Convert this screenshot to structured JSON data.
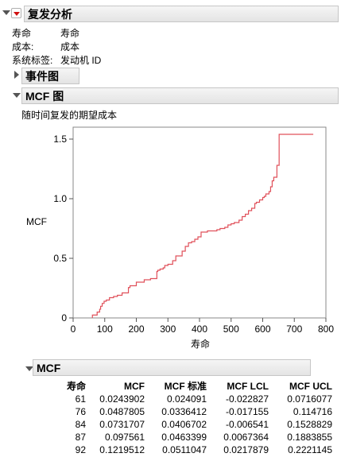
{
  "report": {
    "title": "复发分析",
    "fields": [
      {
        "label": "寿命",
        "value": "寿命"
      },
      {
        "label": "成本:",
        "value": "成本"
      },
      {
        "label": "系统标签:",
        "value": "发动机 ID"
      }
    ]
  },
  "event_plot": {
    "title": "事件图"
  },
  "mcf_plot": {
    "title": "MCF 图",
    "subtitle": "随时间复发的期望成本",
    "line_color": "#e0505a"
  },
  "chart_data": {
    "type": "line",
    "step": true,
    "xlabel": "寿命",
    "ylabel": "MCF",
    "xlim": [
      0,
      800
    ],
    "ylim": [
      0,
      1.6
    ],
    "x_ticks": [
      "0",
      "100",
      "200",
      "300",
      "400",
      "500",
      "600",
      "700",
      "800"
    ],
    "y_ticks": [
      "0",
      "0.5",
      "1.0",
      "1.5"
    ],
    "x_tick_values": [
      0,
      100,
      200,
      300,
      400,
      500,
      600,
      700,
      800
    ],
    "y_tick_values": [
      0,
      0.5,
      1.0,
      1.5
    ],
    "grid": false,
    "series": [
      {
        "x": [
          0,
          61,
          76,
          84,
          87,
          92,
          98,
          105,
          115,
          128,
          140,
          155,
          175,
          180,
          200,
          225,
          245,
          265,
          268,
          275,
          285,
          290,
          300,
          315,
          325,
          345,
          355,
          365,
          375,
          385,
          395,
          405,
          425,
          445,
          455,
          465,
          480,
          490,
          500,
          510,
          525,
          535,
          545,
          555,
          565,
          575,
          580,
          590,
          600,
          605,
          610,
          620,
          625,
          630,
          635,
          645,
          652,
          760
        ],
        "y": [
          0,
          0.024,
          0.049,
          0.073,
          0.098,
          0.122,
          0.14,
          0.15,
          0.17,
          0.18,
          0.19,
          0.21,
          0.255,
          0.27,
          0.3,
          0.32,
          0.33,
          0.39,
          0.4,
          0.41,
          0.42,
          0.44,
          0.45,
          0.48,
          0.52,
          0.56,
          0.6,
          0.63,
          0.64,
          0.66,
          0.68,
          0.72,
          0.73,
          0.73,
          0.74,
          0.75,
          0.76,
          0.78,
          0.79,
          0.8,
          0.82,
          0.85,
          0.87,
          0.9,
          0.92,
          0.96,
          0.97,
          0.99,
          1.01,
          1.02,
          1.04,
          1.06,
          1.1,
          1.15,
          1.18,
          1.28,
          1.54,
          1.54
        ]
      }
    ]
  },
  "mcf_table": {
    "title": "MCF",
    "columns": [
      "寿命",
      "MCF",
      "MCF 标准",
      "MCF LCL",
      "MCF UCL"
    ],
    "rows": [
      [
        "61",
        "0.0243902",
        "0.024091",
        "-0.022827",
        "0.0716077"
      ],
      [
        "76",
        "0.0487805",
        "0.0336412",
        "-0.017155",
        "0.114716"
      ],
      [
        "84",
        "0.0731707",
        "0.0406702",
        "-0.006541",
        "0.1528829"
      ],
      [
        "87",
        "0.097561",
        "0.0463399",
        "0.0067364",
        "0.1883855"
      ],
      [
        "92",
        "0.1219512",
        "0.0511047",
        "0.0217879",
        "0.2221145"
      ]
    ]
  }
}
